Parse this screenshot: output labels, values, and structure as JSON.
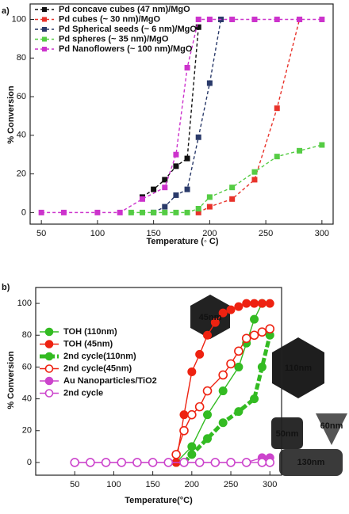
{
  "chart_data": [
    {
      "type": "line",
      "panel_label": "a)",
      "xlabel": "Temperature (◦ C)",
      "ylabel": "% Conversion",
      "xlim": [
        40,
        310
      ],
      "ylim": [
        -6,
        108
      ],
      "xticks": [
        50,
        100,
        150,
        200,
        250,
        300
      ],
      "yticks": [
        0,
        20,
        40,
        60,
        80,
        100
      ],
      "marker": "square",
      "series": [
        {
          "name": "Pd concave cubes  (47 nm)/MgO",
          "color": "#111111",
          "line_style": "dashed",
          "fill": "filled",
          "x": [
            140,
            150,
            160,
            170,
            180,
            190
          ],
          "values": [
            8,
            12,
            17,
            24,
            28,
            96
          ]
        },
        {
          "name": "Pd cubes (~ 30 nm)/MgO",
          "color": "#e8322a",
          "line_style": "dashed",
          "fill": "filled",
          "x": [
            190,
            200,
            220,
            240,
            260,
            280
          ],
          "values": [
            0,
            3,
            7,
            17,
            54,
            100
          ]
        },
        {
          "name": "Pd Spherical seeds (~ 6 nm)/MgO",
          "color": "#2a3a6a",
          "line_style": "dashed",
          "fill": "filled",
          "x": [
            150,
            160,
            170,
            180,
            190,
            200,
            210
          ],
          "values": [
            0,
            3,
            9,
            12,
            39,
            67,
            100
          ]
        },
        {
          "name": "Pd spheres (~ 35 nm)/MgO",
          "color": "#55cc44",
          "line_style": "dashed",
          "fill": "filled",
          "x": [
            130,
            140,
            150,
            160,
            170,
            180,
            190,
            200,
            220,
            240,
            260,
            280,
            300
          ],
          "values": [
            0,
            0,
            0,
            0,
            0,
            0,
            2,
            8,
            13,
            21,
            29,
            32,
            35
          ]
        },
        {
          "name": "Pd Nanoflowers (~ 100 nm)/MgO",
          "color": "#cc33cc",
          "line_style": "dashed",
          "fill": "filled",
          "x": [
            50,
            70,
            100,
            120,
            140,
            160,
            170,
            180,
            190,
            200,
            220,
            240,
            260,
            280,
            300
          ],
          "values": [
            0,
            0,
            0,
            0,
            7,
            13,
            30,
            75,
            100,
            100,
            100,
            100,
            100,
            100,
            100
          ]
        }
      ]
    },
    {
      "type": "line",
      "panel_label": "b)",
      "xlabel": "Temperature(°C)",
      "ylabel": "% Conversion",
      "xlim": [
        0,
        315
      ],
      "ylim": [
        -8,
        110
      ],
      "xticks": [
        50,
        100,
        150,
        200,
        250,
        300
      ],
      "yticks": [
        0,
        20,
        40,
        60,
        80,
        100
      ],
      "marker": "circle",
      "series": [
        {
          "name": "TOH (110nm)",
          "color": "#33bb22",
          "line_style": "solid",
          "fill": "filled",
          "x": [
            180,
            200,
            220,
            240,
            260,
            270,
            280,
            290
          ],
          "values": [
            0,
            10,
            30,
            45,
            60,
            75,
            90,
            100
          ]
        },
        {
          "name": "TOH (45nm)",
          "color": "#ee2211",
          "line_style": "solid",
          "fill": "filled",
          "x": [
            180,
            190,
            200,
            210,
            220,
            230,
            240,
            250,
            260,
            270,
            280,
            290,
            300
          ],
          "values": [
            0,
            30,
            57,
            68,
            80,
            88,
            94,
            96,
            98,
            100,
            100,
            100,
            100
          ]
        },
        {
          "name": "2nd cycle(110nm)",
          "color": "#33bb22",
          "line_style": "thick",
          "fill": "filled",
          "x": [
            190,
            200,
            220,
            240,
            260,
            280,
            290,
            300
          ],
          "values": [
            0,
            5,
            15,
            25,
            32,
            40,
            60,
            80
          ]
        },
        {
          "name": "2nd cycle(45nm)",
          "color": "#ee2211",
          "line_style": "solid",
          "fill": "open",
          "x": [
            180,
            190,
            200,
            210,
            220,
            240,
            250,
            260,
            270,
            280,
            290,
            300
          ],
          "values": [
            5,
            20,
            30,
            35,
            45,
            55,
            62,
            70,
            78,
            80,
            82,
            84
          ]
        },
        {
          "name": "Au Nanoparticles/TiO2",
          "color": "#cc44cc",
          "line_style": "solid",
          "fill": "filled",
          "x": [
            50,
            70,
            90,
            110,
            130,
            150,
            170,
            190,
            210,
            230,
            250,
            270,
            290,
            300
          ],
          "values": [
            0,
            0,
            0,
            0,
            0,
            0,
            0,
            0,
            0,
            0,
            0,
            0,
            3,
            3
          ]
        },
        {
          "name": "2nd cycle",
          "color": "#cc44cc",
          "line_style": "solid",
          "fill": "open",
          "x": [
            50,
            70,
            90,
            110,
            130,
            150,
            170,
            190,
            210,
            230,
            250,
            270,
            290,
            300
          ],
          "values": [
            0,
            0,
            0,
            0,
            0,
            0,
            0,
            0,
            0,
            0,
            0,
            0,
            0,
            0
          ]
        }
      ],
      "annotations": [
        "45nm",
        "110nm",
        "50nm",
        "60nm",
        "130nm"
      ]
    }
  ]
}
